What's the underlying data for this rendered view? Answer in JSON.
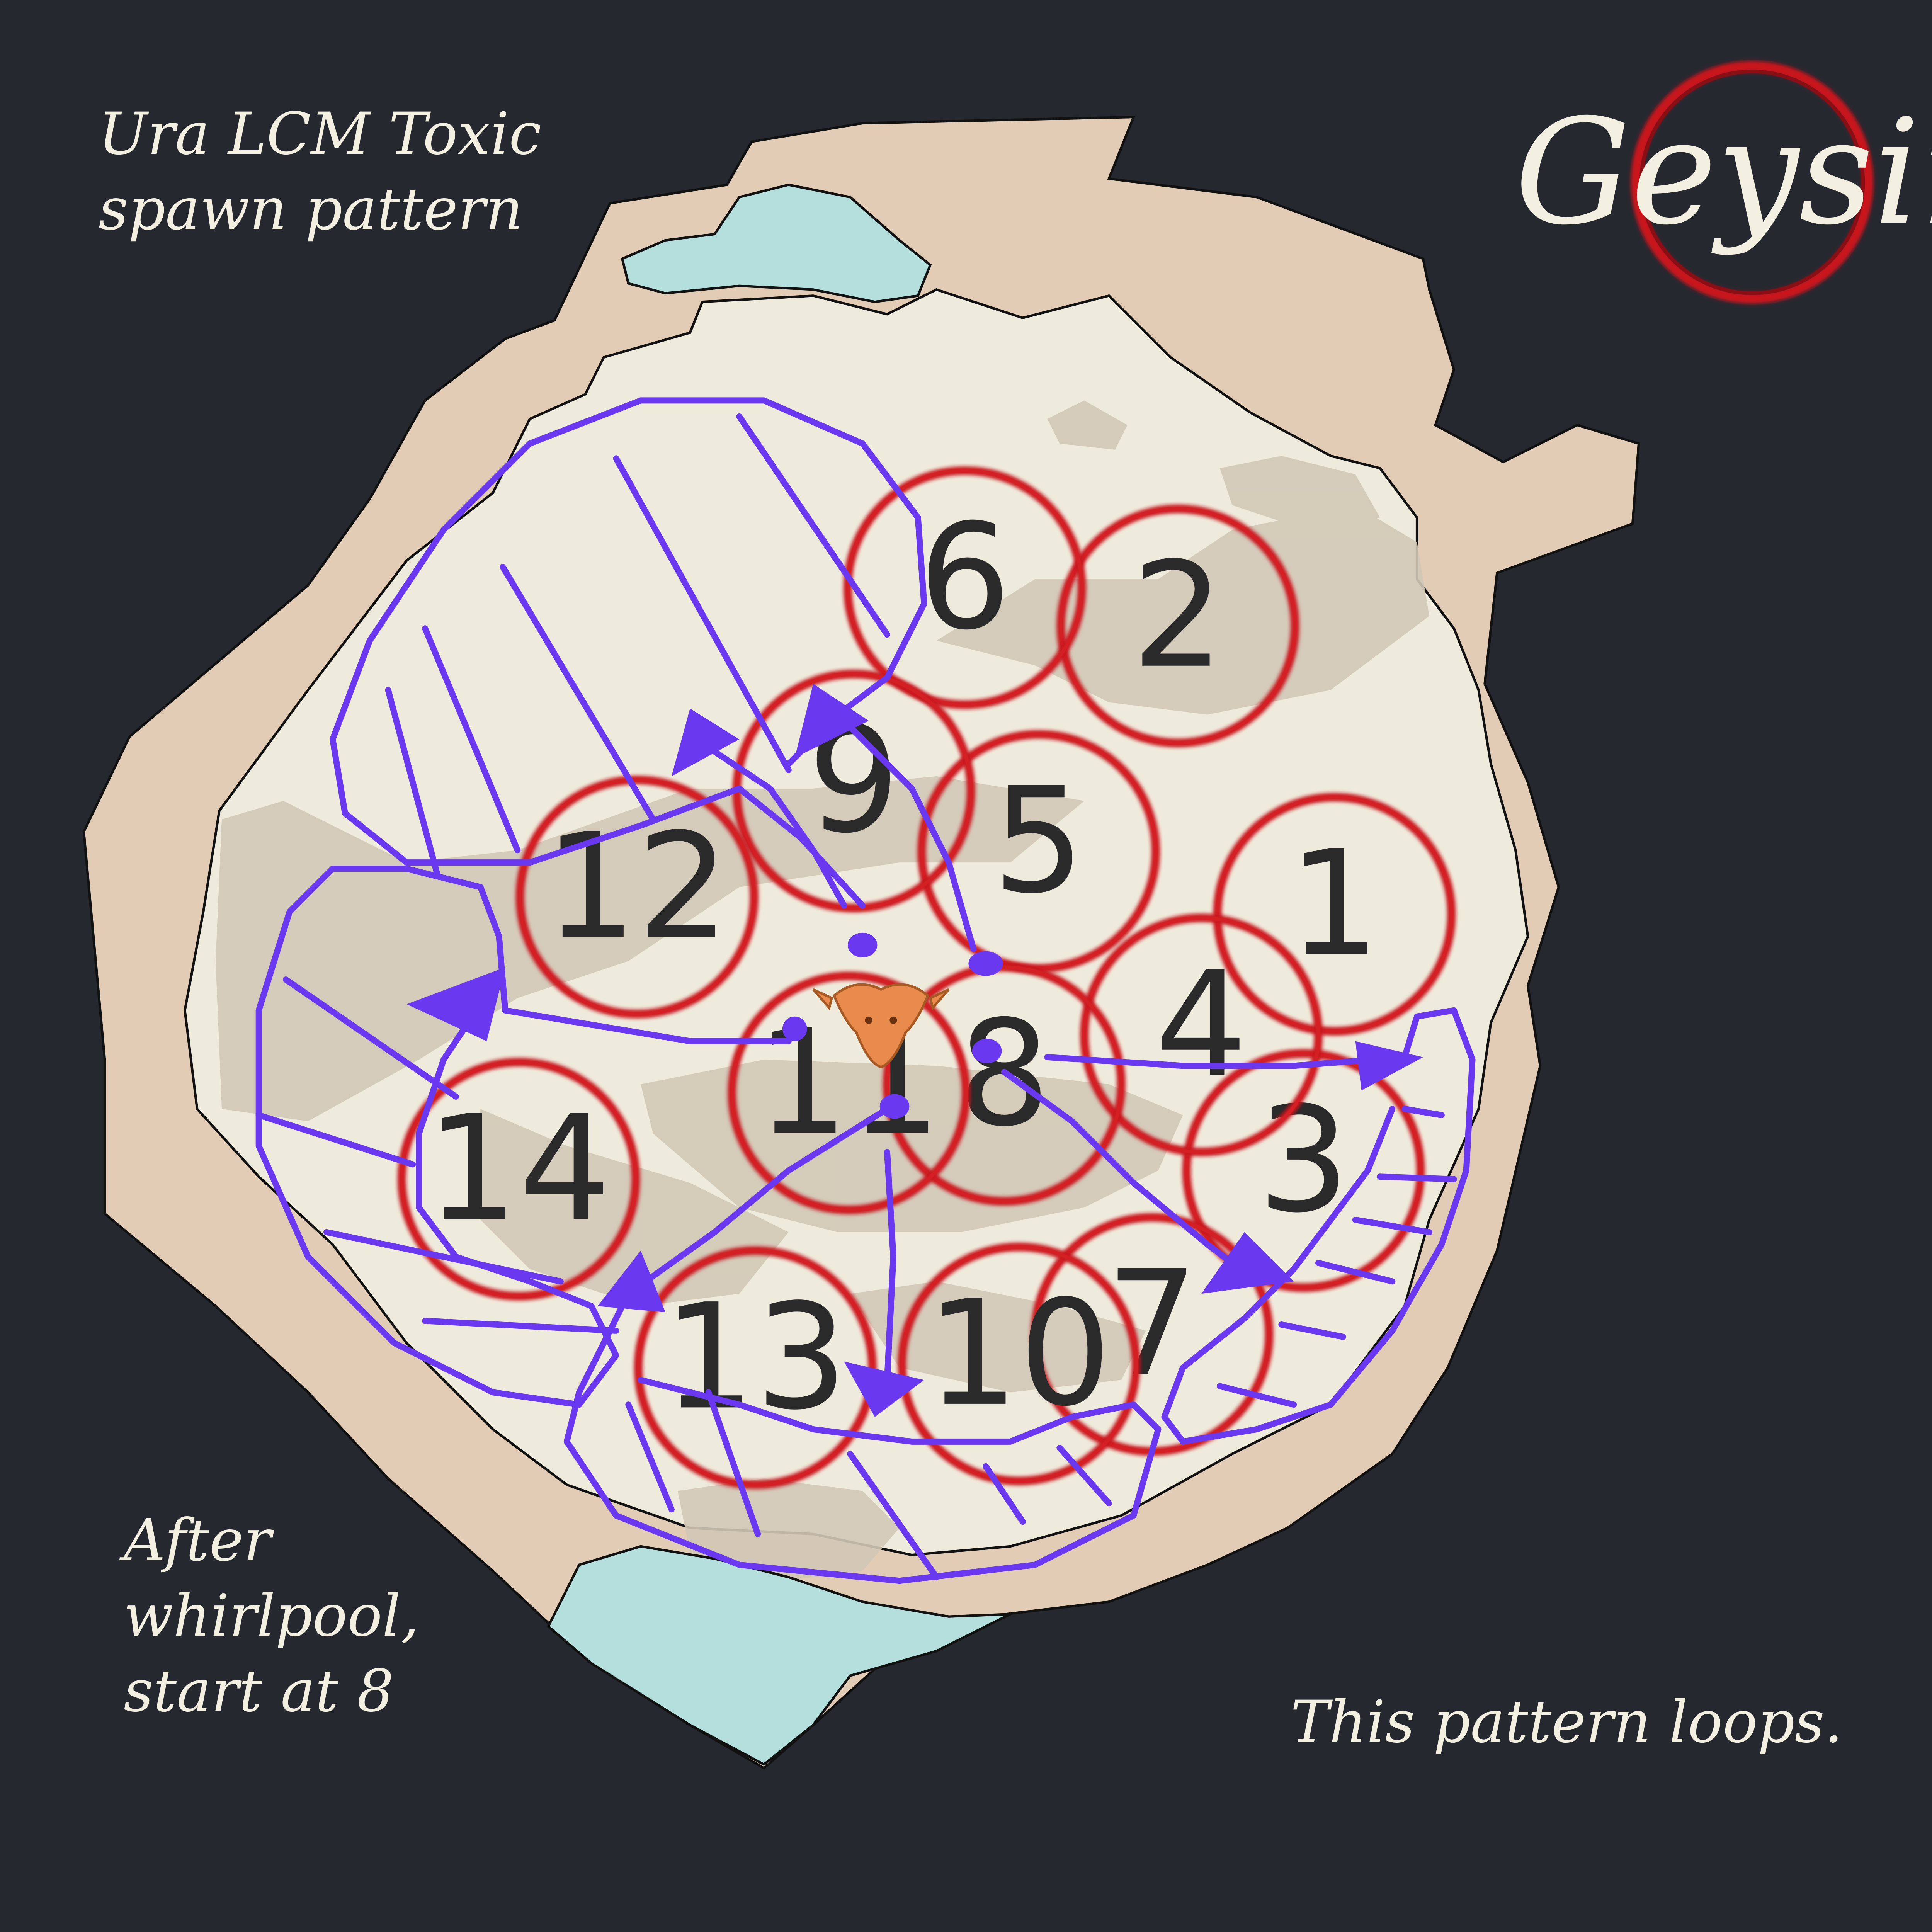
{
  "title": "Ura LCM Toxic\nspawn pattern",
  "badge": "Geysir",
  "start_note": "After\nwhirlpool,\nstart at 8",
  "loop_note": "This pattern loops.",
  "boss_icon": "boss-head-icon",
  "colors": {
    "background": "#262830",
    "arena_floor": "#efebdc",
    "arena_edge": "#e2ccb6",
    "rock": "#d2c8b6",
    "water": "#b4dfdd",
    "spawn_circle": "#c8141c",
    "path": "#6a38ee",
    "text": "#f3efe1"
  },
  "spawn_points": [
    {
      "id": "1",
      "label": "1"
    },
    {
      "id": "2",
      "label": "2"
    },
    {
      "id": "3",
      "label": "3"
    },
    {
      "id": "4",
      "label": "4"
    },
    {
      "id": "5",
      "label": "5"
    },
    {
      "id": "6",
      "label": "6"
    },
    {
      "id": "7",
      "label": "7"
    },
    {
      "id": "8",
      "label": "8"
    },
    {
      "id": "9",
      "label": "9"
    },
    {
      "id": "10",
      "label": "10"
    },
    {
      "id": "11",
      "label": "11"
    },
    {
      "id": "12",
      "label": "12"
    },
    {
      "id": "13",
      "label": "13"
    },
    {
      "id": "14",
      "label": "14"
    }
  ]
}
